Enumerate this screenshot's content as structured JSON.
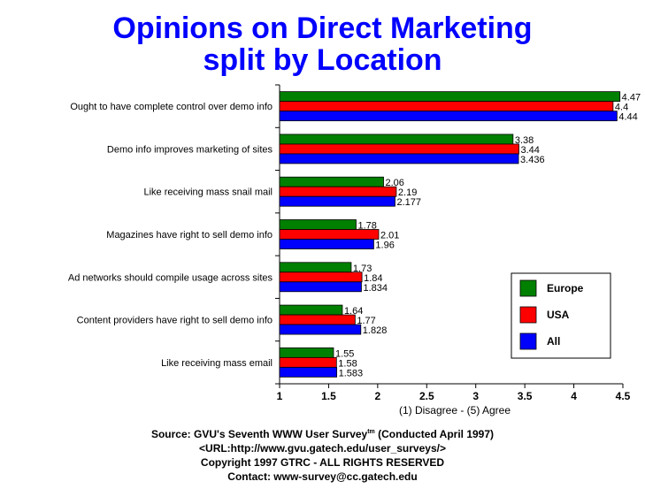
{
  "title_line1": "Opinions on Direct Marketing",
  "title_line2": "split by Location",
  "chart_data": {
    "type": "bar",
    "orientation": "horizontal",
    "title": "Opinions on Direct Marketing split by Location",
    "xlabel": "(1) Disagree - (5) Agree",
    "ylabel": "",
    "xlim": [
      1,
      4.5
    ],
    "x_ticks": [
      "1",
      "1.5",
      "2",
      "2.5",
      "3",
      "3.5",
      "4",
      "4.5"
    ],
    "grid": false,
    "legend_position": "right",
    "categories": [
      "Ought to have complete control over demo info",
      "Demo info improves marketing of sites",
      "Like receiving mass snail mail",
      "Magazines have right to sell demo info",
      "Ad networks should compile usage across sites",
      "Content providers have right to sell demo info",
      "Like receiving mass email"
    ],
    "series": [
      {
        "name": "Europe",
        "color": "#008000",
        "values": [
          4.47,
          3.38,
          2.06,
          1.78,
          1.73,
          1.64,
          1.55
        ],
        "labels": [
          "4.47",
          "3.38",
          "2.06",
          "1.78",
          "1.73",
          "1.64",
          "1.55"
        ]
      },
      {
        "name": "USA",
        "color": "#ff0000",
        "values": [
          4.4,
          3.44,
          2.19,
          2.01,
          1.84,
          1.77,
          1.58
        ],
        "labels": [
          "4.4",
          "3.44",
          "2.19",
          "2.01",
          "1.84",
          "1.77",
          "1.58"
        ]
      },
      {
        "name": "All",
        "color": "#0000ff",
        "values": [
          4.44,
          3.436,
          2.177,
          1.96,
          1.834,
          1.828,
          1.583
        ],
        "labels": [
          "4.44",
          "3.436",
          "2.177",
          "1.96",
          "1.834",
          "1.828",
          "1.583"
        ]
      }
    ]
  },
  "footer": {
    "source_prefix": "Source: GVU's Seventh WWW User Survey",
    "source_tm": "tm",
    "source_suffix": " (Conducted April 1997)",
    "url": "<URL:http://www.gvu.gatech.edu/user_surveys/>",
    "copyright": "Copyright 1997 GTRC - ALL RIGHTS RESERVED",
    "contact": "Contact: www-survey@cc.gatech.edu"
  }
}
